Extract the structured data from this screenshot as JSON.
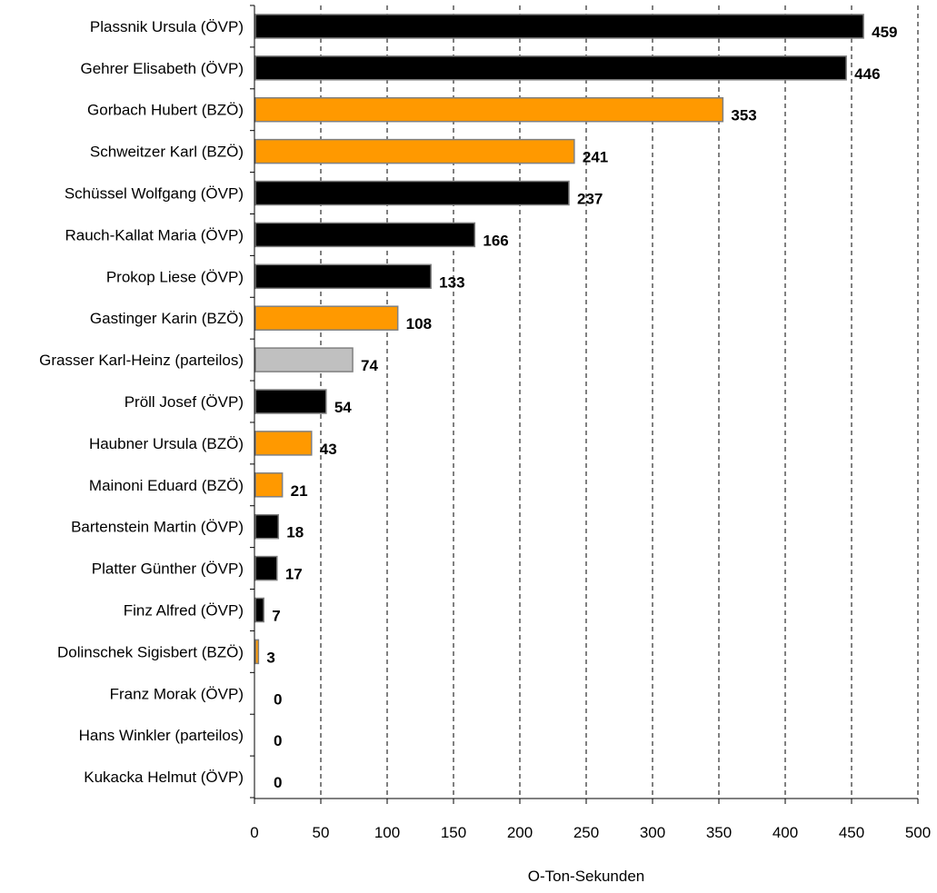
{
  "chart_data": {
    "type": "bar",
    "orientation": "horizontal",
    "title": "",
    "xlabel": "O-Ton-Sekunden",
    "ylabel": "",
    "xlim": [
      0,
      500
    ],
    "x_ticks": [
      0,
      50,
      100,
      150,
      200,
      250,
      300,
      350,
      400,
      450,
      500
    ],
    "grid": "vertical-dashed",
    "legend": "none",
    "party_colors": {
      "ÖVP": "#000000",
      "BZÖ": "#FF9900",
      "parteilos": "#C0C0C0"
    },
    "categories": [
      "Plassnik Ursula (ÖVP)",
      "Gehrer Elisabeth (ÖVP)",
      "Gorbach Hubert (BZÖ)",
      "Schweitzer Karl (BZÖ)",
      "Schüssel Wolfgang (ÖVP)",
      "Rauch-Kallat Maria (ÖVP)",
      "Prokop Liese (ÖVP)",
      "Gastinger Karin (BZÖ)",
      "Grasser Karl-Heinz (parteilos)",
      "Pröll Josef (ÖVP)",
      "Haubner Ursula (BZÖ)",
      "Mainoni Eduard (BZÖ)",
      "Bartenstein Martin (ÖVP)",
      "Platter Günther (ÖVP)",
      "Finz Alfred (ÖVP)",
      "Dolinschek Sigisbert (BZÖ)",
      "Franz Morak (ÖVP)",
      "Hans Winkler (parteilos)",
      "Kukacka Helmut (ÖVP)"
    ],
    "values": [
      459,
      446,
      353,
      241,
      237,
      166,
      133,
      108,
      74,
      54,
      43,
      21,
      18,
      17,
      7,
      3,
      0,
      0,
      0
    ],
    "bar_colors": [
      "#000000",
      "#000000",
      "#FF9900",
      "#FF9900",
      "#000000",
      "#000000",
      "#000000",
      "#FF9900",
      "#C0C0C0",
      "#000000",
      "#FF9900",
      "#FF9900",
      "#000000",
      "#000000",
      "#000000",
      "#FF9900",
      "#000000",
      "#C0C0C0",
      "#000000"
    ]
  }
}
